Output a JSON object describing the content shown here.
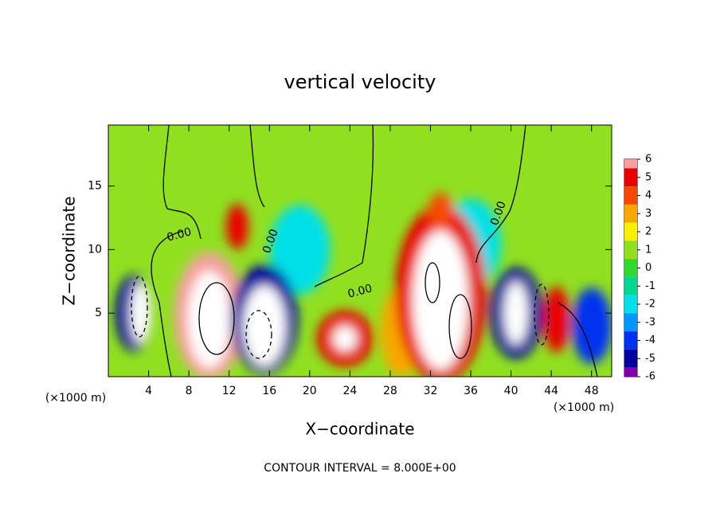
{
  "chart_data": {
    "type": "contour",
    "title": "vertical velocity",
    "xlabel": "X−coordinate",
    "ylabel": "Z−coordinate",
    "x_unit_label": "(×1000 m)",
    "x_unit_label_right": "(×1000 m)",
    "footer": "CONTOUR INTERVAL = 8.000E+00",
    "contour_labels": [
      "0.00",
      "0.00",
      "0.00",
      "0.00"
    ],
    "xlim": [
      0,
      50
    ],
    "xticks": [
      4,
      8,
      12,
      16,
      20,
      24,
      28,
      32,
      36,
      40,
      44,
      48
    ],
    "ylim": [
      0,
      19.8
    ],
    "yticks": [
      5,
      10,
      15
    ],
    "background_value": 0.5,
    "cells": [
      {
        "x": 19,
        "z": 10,
        "rx": 3,
        "rz": 3.5,
        "value": -1.5
      },
      {
        "x": 36,
        "z": 10.5,
        "rx": 3,
        "rz": 3.5,
        "value": -1.5
      },
      {
        "x": 2.5,
        "z": 5,
        "rx": 1.8,
        "rz": 3,
        "value": -4.5
      },
      {
        "x": 3.2,
        "z": 5,
        "rx": 1,
        "rz": 2.4,
        "value": -7
      },
      {
        "x": 10,
        "z": 4.8,
        "rx": 3.5,
        "rz": 5,
        "value": 5
      },
      {
        "x": 10,
        "z": 4.5,
        "rx": 2.1,
        "rz": 3.8,
        "value": 7
      },
      {
        "x": 15.5,
        "z": 4.5,
        "rx": 3.3,
        "rz": 4.3,
        "value": -4.5
      },
      {
        "x": 15.5,
        "z": 4,
        "rx": 2.1,
        "rz": 3.2,
        "value": -7
      },
      {
        "x": 29,
        "z": 3.5,
        "rx": 2,
        "rz": 3.5,
        "value": 2
      },
      {
        "x": 23.5,
        "z": 3,
        "rx": 2.8,
        "rz": 2.2,
        "value": 4
      },
      {
        "x": 23.5,
        "z": 3,
        "rx": 1.2,
        "rz": 1,
        "value": 7
      },
      {
        "x": 33,
        "z": 6.5,
        "rx": 4.5,
        "rz": 7,
        "value": 4.5
      },
      {
        "x": 33,
        "z": 6,
        "rx": 2.8,
        "rz": 5.5,
        "value": 7
      },
      {
        "x": 33,
        "z": 13,
        "rx": 1.2,
        "rz": 1.5,
        "value": 3
      },
      {
        "x": 40.5,
        "z": 5,
        "rx": 2.6,
        "rz": 3.6,
        "value": -4.5
      },
      {
        "x": 40.5,
        "z": 5,
        "rx": 1.2,
        "rz": 2.5,
        "value": -7
      },
      {
        "x": 44.5,
        "z": 4.5,
        "rx": 1.3,
        "rz": 2.6,
        "value": 4
      },
      {
        "x": 48,
        "z": 4,
        "rx": 2,
        "rz": 3,
        "value": -3.5
      },
      {
        "x": 12.8,
        "z": 11.8,
        "rx": 1.1,
        "rz": 1.8,
        "value": 4
      }
    ],
    "colorbar": {
      "levels": [
        6,
        5,
        4,
        3,
        2,
        1,
        0,
        -1,
        -2,
        -3,
        -4,
        -5,
        -6
      ],
      "colors": [
        "#f4a0a0",
        "#e80000",
        "#f84800",
        "#f8a800",
        "#f8f000",
        "#90e020",
        "#30d830",
        "#00d890",
        "#00e0e8",
        "#0098ff",
        "#0030f0",
        "#0000a0",
        "#8000b0"
      ],
      "beyond_color": "#ffffff"
    }
  }
}
